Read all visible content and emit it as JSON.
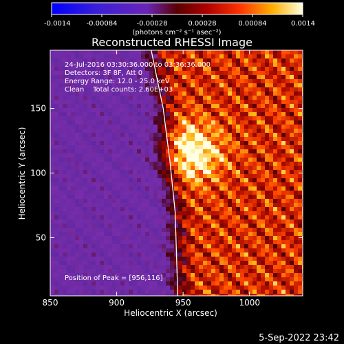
{
  "chart_data": {
    "type": "heatmap",
    "title": "Reconstructed RHESSI Image",
    "xlabel": "Heliocentric X (arcsec)",
    "ylabel": "Heliocentric Y (arcsec)",
    "xlim": [
      850,
      1040
    ],
    "ylim": [
      5,
      195
    ],
    "x_ticks": [
      850,
      900,
      950,
      1000
    ],
    "y_ticks": [
      50,
      100,
      150
    ],
    "colorbar": {
      "range": [
        -0.0014,
        0.0014
      ],
      "ticks": [
        "-0.0014",
        "-0.00084",
        "-0.00028",
        "0.00028",
        "0.00084",
        "0.0014"
      ],
      "units": "(photons cm⁻² s⁻¹ asec⁻²)"
    },
    "annotations": [
      "24-Jul-2016 03:30:36.000 to 03:36:36.000",
      "Detectors: 3F 8F, Att 0",
      "Energy Range: 12.0 - 25.0 keV",
      "Clean    Total counts: 2.60E+03"
    ],
    "peak_label": "Position of Peak = [956,116]",
    "peak": [
      956,
      116
    ],
    "limb_points": [
      [
        926,
        195
      ],
      [
        935,
        150
      ],
      [
        940,
        110
      ],
      [
        944,
        70
      ],
      [
        946,
        5
      ]
    ],
    "grid": false
  },
  "footer": {
    "date": "5-Sep-2022 23:42"
  }
}
